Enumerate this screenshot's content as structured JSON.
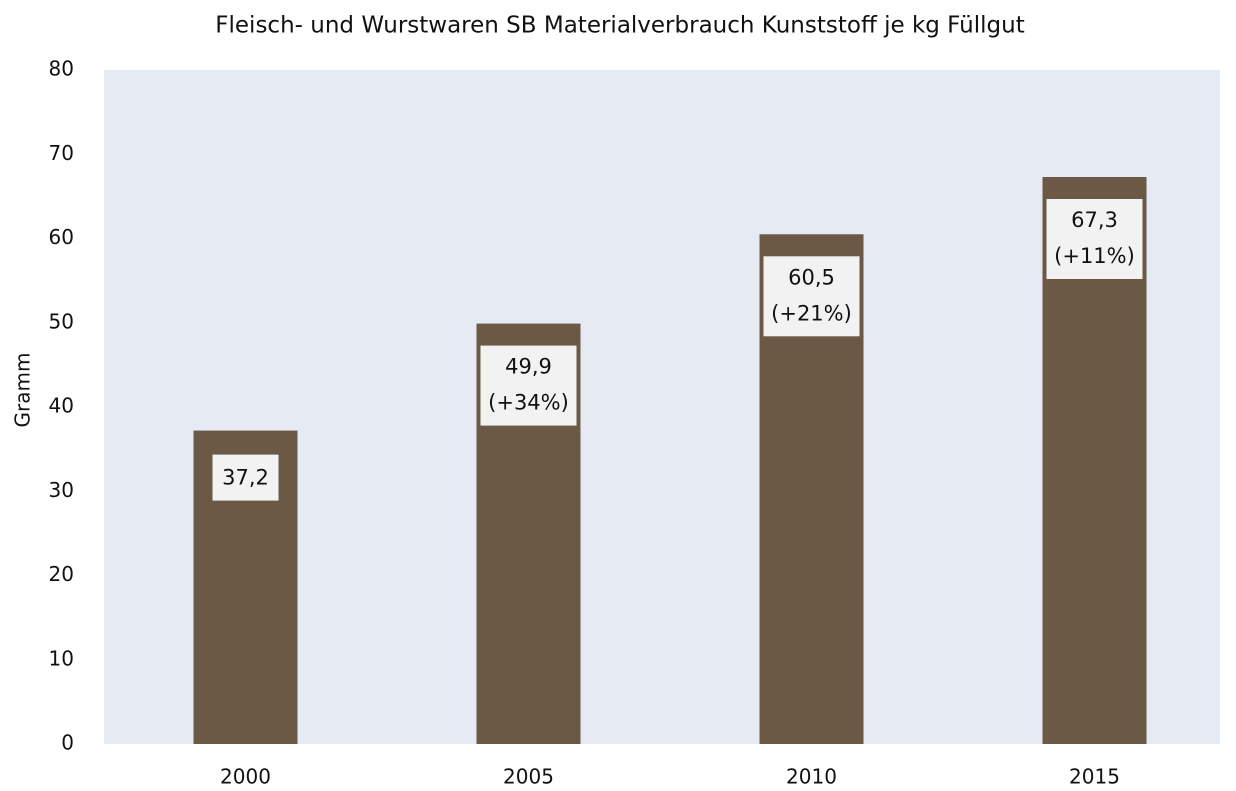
{
  "chart_data": {
    "type": "bar",
    "title": "Fleisch- und Wurstwaren SB Materialverbrauch Kunststoff je kg Füllgut",
    "y_label": "Gramm",
    "categories": [
      "2000",
      "2005",
      "2010",
      "2015"
    ],
    "values": [
      37.2,
      49.9,
      60.5,
      67.3
    ],
    "value_labels": [
      "37,2",
      "49,9",
      "60,5",
      "67,3"
    ],
    "change_labels": [
      null,
      "(+34%)",
      "(+21%)",
      "(+11%)"
    ],
    "color": "#6b5946",
    "ylim": [
      0,
      80
    ],
    "yticks": [
      0,
      10,
      20,
      30,
      40,
      50,
      60,
      70,
      80
    ],
    "grid": false
  }
}
